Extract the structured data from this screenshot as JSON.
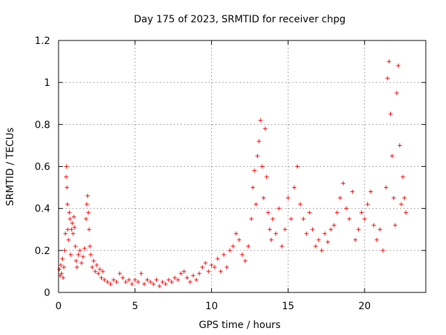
{
  "chart_data": {
    "type": "scatter",
    "title": "Day 175 of 2023, SRMTID for receiver chpg",
    "xlabel": "GPS time / hours",
    "ylabel": "SRMTID / TECUs",
    "xlim": [
      0,
      24
    ],
    "ylim": [
      0,
      1.2
    ],
    "xticks": [
      0,
      5,
      10,
      15,
      20
    ],
    "xtick_labels": [
      "0",
      "5",
      "10",
      "15",
      "20"
    ],
    "yticks": [
      0,
      0.2,
      0.4,
      0.6,
      0.8,
      1.0,
      1.2
    ],
    "ytick_labels": [
      "0",
      "0.2",
      "0.4",
      "0.6",
      "0.8",
      "1",
      "1.2"
    ],
    "grid": true,
    "marker": "+",
    "color": "#ff0000",
    "series": [
      {
        "name": "SRMTID",
        "points": [
          [
            0.05,
            0.11
          ],
          [
            0.1,
            0.08
          ],
          [
            0.15,
            0.13
          ],
          [
            0.2,
            0.09
          ],
          [
            0.25,
            0.16
          ],
          [
            0.3,
            0.07
          ],
          [
            0.35,
            0.12
          ],
          [
            0.4,
            0.2
          ],
          [
            0.45,
            0.28
          ],
          [
            0.5,
            0.55
          ],
          [
            0.52,
            0.6
          ],
          [
            0.55,
            0.5
          ],
          [
            0.58,
            0.42
          ],
          [
            0.6,
            0.3
          ],
          [
            0.65,
            0.25
          ],
          [
            0.7,
            0.38
          ],
          [
            0.75,
            0.35
          ],
          [
            0.8,
            0.18
          ],
          [
            0.85,
            0.3
          ],
          [
            0.9,
            0.33
          ],
          [
            0.95,
            0.28
          ],
          [
            1.0,
            0.36
          ],
          [
            1.05,
            0.31
          ],
          [
            1.1,
            0.22
          ],
          [
            1.15,
            0.15
          ],
          [
            1.2,
            0.12
          ],
          [
            1.3,
            0.18
          ],
          [
            1.4,
            0.2
          ],
          [
            1.5,
            0.14
          ],
          [
            1.6,
            0.17
          ],
          [
            1.7,
            0.21
          ],
          [
            1.8,
            0.35
          ],
          [
            1.85,
            0.42
          ],
          [
            1.9,
            0.46
          ],
          [
            1.95,
            0.38
          ],
          [
            2.0,
            0.3
          ],
          [
            2.05,
            0.22
          ],
          [
            2.1,
            0.18
          ],
          [
            2.2,
            0.12
          ],
          [
            2.3,
            0.15
          ],
          [
            2.4,
            0.1
          ],
          [
            2.5,
            0.13
          ],
          [
            2.6,
            0.09
          ],
          [
            2.7,
            0.11
          ],
          [
            2.8,
            0.07
          ],
          [
            2.9,
            0.1
          ],
          [
            3.0,
            0.06
          ],
          [
            3.2,
            0.05
          ],
          [
            3.4,
            0.04
          ],
          [
            3.6,
            0.06
          ],
          [
            3.8,
            0.05
          ],
          [
            4.0,
            0.09
          ],
          [
            4.2,
            0.07
          ],
          [
            4.4,
            0.05
          ],
          [
            4.6,
            0.06
          ],
          [
            4.8,
            0.04
          ],
          [
            5.0,
            0.06
          ],
          [
            5.2,
            0.05
          ],
          [
            5.4,
            0.09
          ],
          [
            5.6,
            0.04
          ],
          [
            5.8,
            0.06
          ],
          [
            6.0,
            0.05
          ],
          [
            6.2,
            0.04
          ],
          [
            6.4,
            0.06
          ],
          [
            6.6,
            0.03
          ],
          [
            6.8,
            0.05
          ],
          [
            7.0,
            0.04
          ],
          [
            7.2,
            0.06
          ],
          [
            7.4,
            0.05
          ],
          [
            7.6,
            0.07
          ],
          [
            7.8,
            0.06
          ],
          [
            8.0,
            0.09
          ],
          [
            8.2,
            0.1
          ],
          [
            8.4,
            0.07
          ],
          [
            8.6,
            0.05
          ],
          [
            8.8,
            0.08
          ],
          [
            9.0,
            0.06
          ],
          [
            9.2,
            0.09
          ],
          [
            9.4,
            0.12
          ],
          [
            9.6,
            0.14
          ],
          [
            9.8,
            0.1
          ],
          [
            10.0,
            0.13
          ],
          [
            10.2,
            0.12
          ],
          [
            10.4,
            0.16
          ],
          [
            10.6,
            0.1
          ],
          [
            10.8,
            0.18
          ],
          [
            11.0,
            0.12
          ],
          [
            11.2,
            0.2
          ],
          [
            11.4,
            0.22
          ],
          [
            11.6,
            0.28
          ],
          [
            11.8,
            0.25
          ],
          [
            12.0,
            0.18
          ],
          [
            12.2,
            0.15
          ],
          [
            12.4,
            0.22
          ],
          [
            12.6,
            0.35
          ],
          [
            12.7,
            0.5
          ],
          [
            12.8,
            0.58
          ],
          [
            12.9,
            0.42
          ],
          [
            13.0,
            0.65
          ],
          [
            13.1,
            0.72
          ],
          [
            13.2,
            0.82
          ],
          [
            13.3,
            0.6
          ],
          [
            13.4,
            0.45
          ],
          [
            13.5,
            0.78
          ],
          [
            13.6,
            0.55
          ],
          [
            13.7,
            0.38
          ],
          [
            13.8,
            0.3
          ],
          [
            13.9,
            0.25
          ],
          [
            14.0,
            0.35
          ],
          [
            14.2,
            0.28
          ],
          [
            14.4,
            0.4
          ],
          [
            14.6,
            0.22
          ],
          [
            14.8,
            0.3
          ],
          [
            15.0,
            0.45
          ],
          [
            15.2,
            0.35
          ],
          [
            15.4,
            0.5
          ],
          [
            15.6,
            0.6
          ],
          [
            15.8,
            0.42
          ],
          [
            16.0,
            0.35
          ],
          [
            16.2,
            0.28
          ],
          [
            16.4,
            0.38
          ],
          [
            16.6,
            0.3
          ],
          [
            16.8,
            0.22
          ],
          [
            17.0,
            0.25
          ],
          [
            17.2,
            0.2
          ],
          [
            17.4,
            0.28
          ],
          [
            17.6,
            0.24
          ],
          [
            17.8,
            0.3
          ],
          [
            18.0,
            0.32
          ],
          [
            18.2,
            0.38
          ],
          [
            18.4,
            0.45
          ],
          [
            18.6,
            0.52
          ],
          [
            18.8,
            0.4
          ],
          [
            19.0,
            0.35
          ],
          [
            19.2,
            0.48
          ],
          [
            19.4,
            0.25
          ],
          [
            19.6,
            0.3
          ],
          [
            19.8,
            0.38
          ],
          [
            20.0,
            0.35
          ],
          [
            20.2,
            0.42
          ],
          [
            20.4,
            0.48
          ],
          [
            20.6,
            0.32
          ],
          [
            20.8,
            0.25
          ],
          [
            21.0,
            0.3
          ],
          [
            21.2,
            0.2
          ],
          [
            21.4,
            0.5
          ],
          [
            21.5,
            1.02
          ],
          [
            21.6,
            1.1
          ],
          [
            21.7,
            0.85
          ],
          [
            21.8,
            0.65
          ],
          [
            21.9,
            0.45
          ],
          [
            22.0,
            0.32
          ],
          [
            22.1,
            0.95
          ],
          [
            22.2,
            1.08
          ],
          [
            22.3,
            0.7
          ],
          [
            22.4,
            0.42
          ],
          [
            22.5,
            0.55
          ],
          [
            22.6,
            0.45
          ],
          [
            22.7,
            0.38
          ]
        ]
      }
    ]
  }
}
